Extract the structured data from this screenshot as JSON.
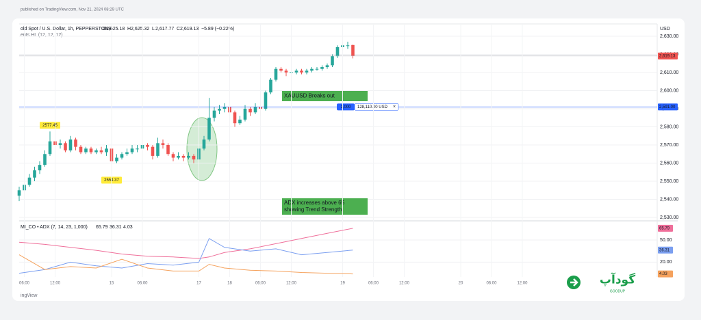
{
  "header": {
    "published": "published on TradingView.com, Nov 21, 2024 08:29 UTC",
    "indicator_line": "ents HL (12, 12, 12)",
    "currency": "USD"
  },
  "footer": "ingView",
  "brand": {
    "logo_text": "گودآپ",
    "name": "GOODUP"
  },
  "chart_data": [
    {
      "type": "candlestick",
      "title": "old Spot / U.S. Dollar, 1h, PEPPERSTONE",
      "ohlc_keys": [
        "O",
        "H",
        "L",
        "C"
      ],
      "ohlc_labels": [
        "2,625.18",
        "2,625.32",
        "2,617.77",
        "2,619.13"
      ],
      "change_label": "−5.89 (−0.22%)",
      "up_color": "#26a69a",
      "down_color": "#ef5350",
      "x": [
        0,
        1,
        2,
        3,
        4,
        5,
        6,
        7,
        8,
        9,
        10,
        11,
        12,
        13,
        14,
        15,
        16,
        17,
        18,
        19,
        20,
        21,
        22,
        23,
        24,
        25,
        26,
        27,
        28,
        29,
        30,
        31,
        32,
        33,
        34,
        35,
        36,
        37,
        38,
        39,
        40,
        41,
        42,
        43,
        44,
        45,
        46,
        47,
        48,
        49,
        50,
        51,
        52,
        53,
        54,
        55,
        56,
        57,
        58,
        59,
        60,
        61,
        62,
        63,
        64,
        65
      ],
      "open": [
        2542,
        2545,
        2548,
        2552,
        2556,
        2559,
        2565,
        2572,
        2570,
        2571,
        2567,
        2573,
        2569,
        2566,
        2568,
        2566,
        2567,
        2566,
        2568,
        2561,
        2563,
        2565,
        2566,
        2568,
        2568,
        2570,
        2569,
        2564,
        2571,
        2570,
        2565,
        2563,
        2564,
        2563,
        2564,
        2562,
        2568,
        2573,
        2585,
        2589,
        2590,
        2591,
        2588,
        2582,
        2584,
        2590,
        2588,
        2591,
        2590,
        2599,
        2606,
        2612,
        2611,
        2610,
        2610,
        2611,
        2610,
        2611,
        2612,
        2612,
        2613,
        2614,
        2619,
        2624,
        2625,
        2625.18
      ],
      "high": [
        2547,
        2550,
        2554,
        2558,
        2561,
        2567,
        2577.45,
        2574,
        2573,
        2572,
        2575,
        2574,
        2570,
        2569,
        2569,
        2568,
        2569,
        2570,
        2569,
        2565,
        2566,
        2568,
        2570,
        2570,
        2572,
        2571,
        2570,
        2574,
        2573,
        2571,
        2566,
        2566,
        2565,
        2566,
        2565,
        2569,
        2575,
        2596,
        2591,
        2592,
        2593,
        2592,
        2589,
        2586,
        2592,
        2591,
        2593,
        2592,
        2600,
        2607,
        2613,
        2613,
        2612,
        2612,
        2612,
        2612,
        2612,
        2613,
        2613,
        2614,
        2615,
        2620,
        2625,
        2627,
        2627,
        2625.32
      ],
      "low": [
        2539,
        2544,
        2547,
        2550,
        2554,
        2558,
        2564,
        2568,
        2568,
        2566,
        2566,
        2567,
        2565,
        2565,
        2565,
        2565,
        2565,
        2564,
        2554.37,
        2560,
        2562,
        2564,
        2565,
        2566,
        2567,
        2567,
        2562,
        2563,
        2568,
        2564,
        2561,
        2562,
        2561,
        2562,
        2560,
        2561,
        2567,
        2572,
        2583,
        2587,
        2588,
        2587,
        2580,
        2581,
        2583,
        2586,
        2587,
        2586,
        2589,
        2598,
        2605,
        2610,
        2608,
        2609,
        2609,
        2609,
        2609,
        2610,
        2611,
        2611,
        2612,
        2613,
        2618,
        2622,
        2623,
        2617.77
      ],
      "close": [
        2545,
        2548,
        2552,
        2556,
        2559,
        2565,
        2572,
        2570,
        2571,
        2567,
        2573,
        2569,
        2566,
        2568,
        2566,
        2567,
        2566,
        2568,
        2561,
        2563,
        2565,
        2566,
        2568,
        2568,
        2570,
        2569,
        2564,
        2571,
        2570,
        2565,
        2563,
        2564,
        2563,
        2564,
        2562,
        2568,
        2573,
        2585,
        2589,
        2590,
        2591,
        2588,
        2582,
        2584,
        2590,
        2588,
        2591,
        2590,
        2599,
        2606,
        2612,
        2611,
        2610,
        2610,
        2611,
        2610,
        2611,
        2612,
        2612,
        2613,
        2614,
        2619,
        2624,
        2625,
        2625,
        2619.13
      ],
      "last_price_label": "2,619.13",
      "position": {
        "price": {
          "value": 2591,
          "label": "2,591.00"
        },
        "quantity": "1,000",
        "pnl": "128,110.00 USD",
        "close": "×",
        "color": "#2962ff"
      },
      "annotations": [
        "XAUUSD Breaks out",
        "ADX increases above 65",
        "showing Trend Strength"
      ],
      "annotation_color": "#4caf50",
      "xlim": [
        0,
        124.27
      ],
      "ylim": [
        2528.5,
        2636.8
      ],
      "yticks": [
        {
          "value": 2530,
          "label": "2,530.00"
        },
        {
          "value": 2540,
          "label": "2,540.00"
        },
        {
          "value": 2550,
          "label": "2,550.00"
        },
        {
          "value": 2560,
          "label": "2,560.00"
        },
        {
          "value": 2570,
          "label": "2,570.00"
        },
        {
          "value": 2580,
          "label": "2,580.00"
        },
        {
          "value": 2590,
          "label": "2,590.00"
        },
        {
          "value": 2600,
          "label": "2,600.00"
        },
        {
          "value": 2610,
          "label": "2,610.00"
        },
        {
          "value": 2620,
          "label": "2,620.00"
        },
        {
          "value": 2630,
          "label": "2,630.00"
        }
      ],
      "grid": true
    },
    {
      "type": "line",
      "title": "MI_CO • ADX (7, 14, 23, 1,000)",
      "x": [
        0,
        5,
        10,
        15,
        20,
        25,
        30,
        35,
        37,
        40,
        45,
        50,
        55,
        60,
        65
      ],
      "series": [
        {
          "color": "#ef6f9a",
          "values": [
            47,
            44,
            40,
            36,
            31,
            28,
            27,
            25,
            27,
            33,
            38,
            45,
            52,
            59,
            65.79
          ]
        },
        {
          "color": "#7b9ff0",
          "values": [
            5,
            10,
            20,
            15,
            12,
            18,
            16,
            20,
            52,
            40,
            35,
            38,
            30,
            33,
            36.31
          ]
        },
        {
          "color": "#f5a25d",
          "values": [
            30,
            10,
            14,
            12,
            24,
            12,
            8,
            8,
            17,
            12,
            9,
            8,
            6,
            5,
            4.03
          ]
        }
      ],
      "xlim": [
        0,
        124.27
      ],
      "ylim": [
        0,
        74
      ],
      "yticks": [
        {
          "value": 20,
          "label": "20.00"
        },
        {
          "value": 50,
          "label": "50.00"
        }
      ],
      "xticks": [
        {
          "value": 1,
          "label": "06:00"
        },
        {
          "value": 7,
          "label": "12:00"
        },
        {
          "value": 18,
          "label": "15"
        },
        {
          "value": 24,
          "label": "06:00"
        },
        {
          "value": 35,
          "label": "17"
        },
        {
          "value": 41,
          "label": "18"
        },
        {
          "value": 47,
          "label": "06:00"
        },
        {
          "value": 53,
          "label": "12:00"
        },
        {
          "value": 63,
          "label": "19"
        },
        {
          "value": 69,
          "label": "06:00"
        },
        {
          "value": 75,
          "label": "12:00"
        },
        {
          "value": 86,
          "label": "20"
        },
        {
          "value": 92,
          "label": "06:00"
        },
        {
          "value": 98,
          "label": "12:00"
        }
      ],
      "grid": true
    }
  ]
}
